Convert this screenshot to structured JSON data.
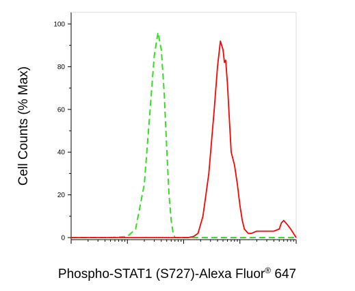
{
  "chart_data": {
    "type": "line",
    "title": "",
    "xlabel": "Phospho-STAT1 (S727)-Alexa Fluor",
    "xlabel_superscript": "®",
    "xlabel_suffix": " 647",
    "ylabel": "Cell Counts (% Max)",
    "x_scale": "log",
    "xlim": [
      1,
      10000
    ],
    "ylim": [
      0,
      100
    ],
    "y_ticks": [
      "0",
      "20",
      "40",
      "60",
      "80",
      "100"
    ],
    "x_tick_labels_shown": false,
    "grid": false,
    "legend": "none",
    "series": [
      {
        "color": "#33dd22",
        "dash": true,
        "x": [
          1,
          5,
          10,
          14,
          20,
          25,
          30,
          35,
          40,
          45,
          50,
          55,
          60,
          65,
          70,
          80,
          100,
          10000
        ],
        "y": [
          0,
          0,
          0.5,
          4,
          25,
          58,
          85,
          96,
          88,
          68,
          42,
          20,
          8,
          2,
          0,
          0,
          0,
          0
        ]
      },
      {
        "color": "#ff0000",
        "dash": false,
        "x": [
          1,
          120,
          150,
          180,
          220,
          280,
          350,
          400,
          450,
          500,
          530,
          560,
          600,
          650,
          700,
          800,
          900,
          1000,
          1100,
          1200,
          1400,
          1600,
          2000,
          3000,
          4000,
          5000,
          5500,
          6000,
          7000,
          8000,
          10000
        ],
        "y": [
          0,
          0,
          0.5,
          2,
          10,
          30,
          60,
          80,
          92,
          88,
          82,
          83,
          72,
          55,
          40,
          34,
          25,
          15,
          8,
          4,
          2,
          2,
          3,
          3,
          3,
          4,
          7,
          8,
          6,
          4,
          0
        ]
      }
    ]
  }
}
